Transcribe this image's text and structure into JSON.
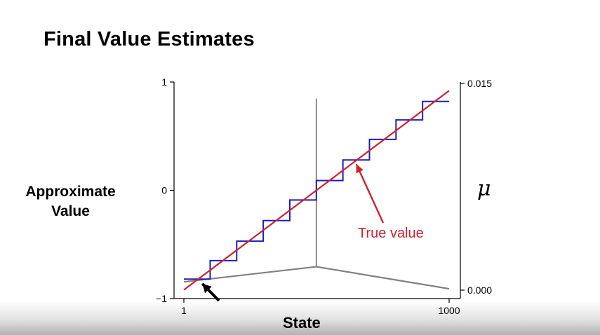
{
  "slide": {
    "title": "Final Value Estimates"
  },
  "chart_data": {
    "type": "line",
    "xlabel": "State",
    "ylabel_left": [
      "Approximate",
      "Value"
    ],
    "ylabel_right": "μ",
    "xlim": [
      1,
      1000
    ],
    "ylim_left": [
      -1,
      1
    ],
    "ylim_right": [
      0.0,
      0.015
    ],
    "x_ticks": [
      {
        "value": 1,
        "label": "1"
      },
      {
        "value": 1000,
        "label": "1000"
      }
    ],
    "y_ticks_left": [
      {
        "value": -1,
        "label": "−1"
      },
      {
        "value": 0,
        "label": "0"
      },
      {
        "value": 1,
        "label": "1"
      }
    ],
    "y_ticks_right": [
      {
        "value": 0.0,
        "label": "0.000"
      },
      {
        "value": 0.015,
        "label": "0.015"
      }
    ],
    "series": [
      {
        "type": "line",
        "color": "#d0202e",
        "x": [
          1,
          1000
        ],
        "y": [
          -0.92,
          0.92
        ]
      },
      {
        "type": "step",
        "color": "#1f1fb4",
        "edges": [
          1,
          100,
          200,
          300,
          400,
          500,
          600,
          700,
          800,
          900,
          1000
        ],
        "values": [
          -0.82,
          -0.65,
          -0.47,
          -0.28,
          -0.09,
          0.09,
          0.28,
          0.47,
          0.65,
          0.82
        ]
      },
      {
        "type": "distribution",
        "axis": "right",
        "color": "#808080",
        "x": [
          1,
          500,
          1000
        ],
        "y": [
          0.0006,
          0.0017,
          0.0001
        ],
        "spike": {
          "x": 500,
          "y": 0.0139
        }
      }
    ],
    "annotations": [
      {
        "text": "True value",
        "color": "#d0202e",
        "arrow_to": {
          "x": 640,
          "y": 0.28
        }
      },
      {
        "text": "",
        "color": "#000000",
        "arrow_to": {
          "x": 60,
          "y": -0.85
        }
      }
    ]
  }
}
